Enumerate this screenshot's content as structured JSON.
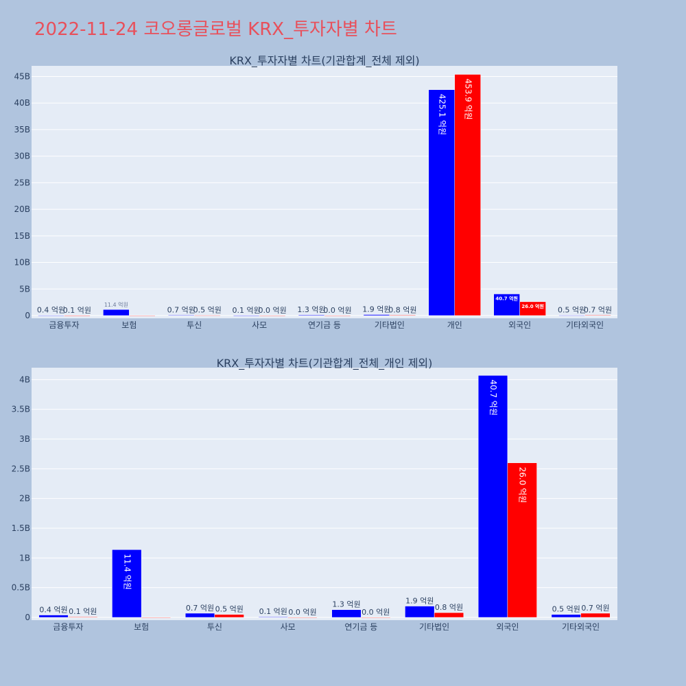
{
  "title": "2022-11-24 코오롱글로벌 KRX_투자자별 차트",
  "colors": {
    "page_bg": "#b0c4de",
    "plot_bg": "#e5ecf6",
    "grid": "#ffffff",
    "buy": "#0000ff",
    "sell": "#ff0000",
    "text": "#2a3f5f",
    "title": "#e8505b"
  },
  "chart_data": [
    {
      "type": "bar",
      "title": "KRX_투자자별 차트(기관합계_전체 제외)",
      "categories": [
        "금융투자",
        "보험",
        "투신",
        "사모",
        "연기금 등",
        "기타법인",
        "개인",
        "외국인",
        "기타외국인"
      ],
      "y_ticks": [
        "0",
        "5B",
        "10B",
        "15B",
        "20B",
        "25B",
        "30B",
        "35B",
        "40B",
        "45B"
      ],
      "ylim": [
        0,
        47
      ],
      "y_unit": 1000000000,
      "series": [
        {
          "color": "#0000ff",
          "values": [
            0.04,
            1.14,
            0.07,
            0.01,
            0.13,
            0.19,
            42.51,
            4.07,
            0.05
          ],
          "labels": [
            "0.4 억원",
            "11.4 억원",
            "0.7 억원",
            "0.1 억원",
            "1.3 억원",
            "1.9 억원",
            "425.1 억원",
            "40.7 억원",
            "0.5 억원"
          ]
        },
        {
          "color": "#ff0000",
          "values": [
            0.01,
            0,
            0.05,
            0.0,
            0.0,
            0.08,
            45.39,
            2.6,
            0.07
          ],
          "labels": [
            "0.1 억원",
            "",
            "0.5 억원",
            "0.0 억원",
            "0.0 억원",
            "0.8 억원",
            "453.9 억원",
            "26.0 억원",
            "0.7 억원"
          ]
        }
      ]
    },
    {
      "type": "bar",
      "title": "KRX_투자자별 차트(기관합계_전체_개인 제외)",
      "categories": [
        "금융투자",
        "보험",
        "투신",
        "사모",
        "연기금 등",
        "기타법인",
        "외국인",
        "기타외국인"
      ],
      "y_ticks": [
        "0",
        "0.5B",
        "1B",
        "1.5B",
        "2B",
        "2.5B",
        "3B",
        "3.5B",
        "4B"
      ],
      "ylim": [
        0,
        4.2
      ],
      "y_unit": 1000000000,
      "series": [
        {
          "color": "#0000ff",
          "values": [
            0.04,
            1.14,
            0.07,
            0.01,
            0.13,
            0.19,
            4.07,
            0.05
          ],
          "labels": [
            "0.4 억원",
            "11.4 억원",
            "0.7 억원",
            "0.1 억원",
            "1.3 억원",
            "1.9 억원",
            "40.7 억원",
            "0.5 억원"
          ]
        },
        {
          "color": "#ff0000",
          "values": [
            0.01,
            0,
            0.05,
            0.0,
            0.0,
            0.08,
            2.6,
            0.07
          ],
          "labels": [
            "0.1 억원",
            "",
            "0.5 억원",
            "0.0 억원",
            "0.0 억원",
            "0.8 억원",
            "26.0 억원",
            "0.7 억원"
          ]
        }
      ]
    }
  ]
}
